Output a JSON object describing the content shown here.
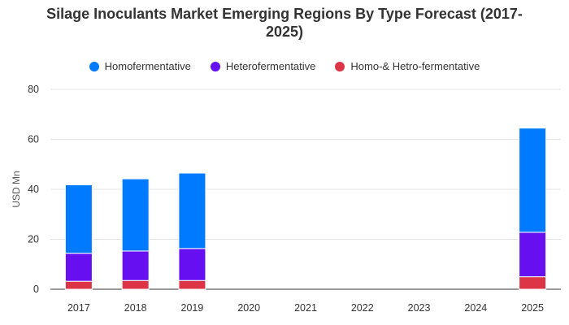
{
  "chart_data": {
    "type": "bar",
    "stacked": true,
    "title_line1": "Silage Inoculants Market Emerging Regions By Type Forecast (2017-",
    "title_line2": "2025)",
    "ylabel": "USD Mn",
    "xlabel": "",
    "ylim": [
      0,
      80
    ],
    "yticks": [
      0,
      20,
      40,
      60,
      80
    ],
    "grid": true,
    "legend_position": "top",
    "categories": [
      "2017",
      "2018",
      "2019",
      "2020",
      "2021",
      "2022",
      "2023",
      "2024",
      "2025"
    ],
    "series": [
      {
        "name": "Homo-& Hetro-fermentative",
        "color": "#dc3545",
        "values": [
          3.2,
          3.5,
          3.5,
          0,
          0,
          0,
          0,
          0,
          5.0
        ]
      },
      {
        "name": "Heterofermentative",
        "color": "#6610f2",
        "values": [
          11.2,
          11.8,
          12.8,
          0,
          0,
          0,
          0,
          0,
          17.8
        ]
      },
      {
        "name": "Homofermentative",
        "color": "#007bff",
        "values": [
          27.4,
          28.9,
          30.2,
          0,
          0,
          0,
          0,
          0,
          41.7
        ]
      }
    ],
    "legend_order": [
      "Homofermentative",
      "Heterofermentative",
      "Homo-& Hetro-fermentative"
    ]
  }
}
